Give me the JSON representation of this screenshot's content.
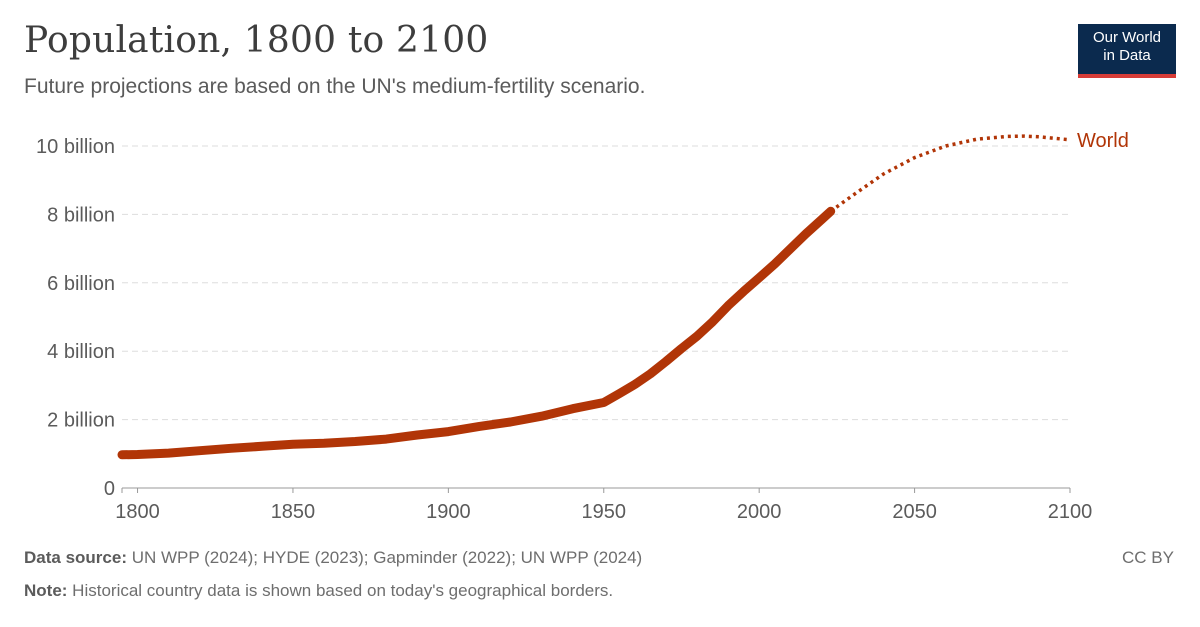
{
  "header": {
    "title": "Population, 1800 to 2100",
    "subtitle": "Future projections are based on the UN's medium-fertility scenario.",
    "logo_line1": "Our World",
    "logo_line2": "in Data"
  },
  "footer": {
    "source_label": "Data source:",
    "source_text": " UN WPP (2024); HYDE (2023); Gapminder (2022); UN WPP (2024)",
    "note_label": "Note:",
    "note_text": " Historical country data is shown based on today's geographical borders.",
    "license": "CC BY"
  },
  "colors": {
    "series": "#b13507",
    "grid": "#dddddd",
    "axis_text": "#5b5b5b",
    "logo_bg": "#0b2a4e",
    "logo_accent": "#d73c37"
  },
  "chart_data": {
    "type": "line",
    "title": "Population, 1800 to 2100",
    "subtitle": "Future projections are based on the UN's medium-fertility scenario.",
    "xlabel": "",
    "ylabel": "",
    "xlim": [
      1795,
      2100
    ],
    "ylim": [
      0,
      10000000000
    ],
    "x_ticks": [
      1800,
      1850,
      1900,
      1950,
      2000,
      2050,
      2100
    ],
    "x_tick_labels": [
      "1800",
      "1850",
      "1900",
      "1950",
      "2000",
      "2050",
      "2100"
    ],
    "y_ticks": [
      0,
      2000000000,
      4000000000,
      6000000000,
      8000000000,
      10000000000
    ],
    "y_tick_labels": [
      "0",
      "2 billion",
      "4 billion",
      "6 billion",
      "8 billion",
      "10 billion"
    ],
    "grid": "horizontal dashed",
    "series": [
      {
        "name": "World",
        "historical": {
          "x": [
            1795,
            1800,
            1810,
            1820,
            1830,
            1840,
            1850,
            1860,
            1870,
            1880,
            1890,
            1900,
            1910,
            1920,
            1930,
            1940,
            1950,
            1955,
            1960,
            1965,
            1970,
            1975,
            1980,
            1985,
            1990,
            1995,
            2000,
            2005,
            2010,
            2015,
            2020,
            2023
          ],
          "y": [
            970000000,
            980000000,
            1020000000,
            1090000000,
            1160000000,
            1220000000,
            1280000000,
            1310000000,
            1360000000,
            1430000000,
            1550000000,
            1650000000,
            1800000000,
            1930000000,
            2100000000,
            2320000000,
            2500000000,
            2760000000,
            3030000000,
            3340000000,
            3700000000,
            4080000000,
            4440000000,
            4860000000,
            5330000000,
            5750000000,
            6150000000,
            6550000000,
            6990000000,
            7430000000,
            7840000000,
            8090000000
          ]
        },
        "projection": {
          "x": [
            2023,
            2030,
            2040,
            2050,
            2060,
            2070,
            2080,
            2085,
            2090,
            2100
          ],
          "y": [
            8090000000,
            8550000000,
            9180000000,
            9660000000,
            10000000000,
            10200000000,
            10280000000,
            10290000000,
            10270000000,
            10180000000
          ]
        }
      }
    ]
  }
}
